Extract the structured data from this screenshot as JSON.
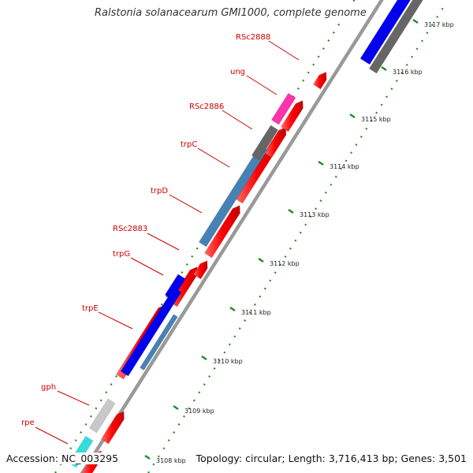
{
  "title": "Ralstonia solanacearum GMI1000, complete genome",
  "footer": {
    "accession": "Accession: NC_003295",
    "summary": "Topology: circular; Length: 3,716,413 bp; Genes: 3,501"
  },
  "colors": {
    "label": "#cc0000",
    "tick": "#228b22",
    "backbone": "#999999",
    "feature_red": "#ff0000",
    "feature_gray": "#666666",
    "feature_light_gray": "#c8c8c8",
    "feature_steelblue": "#4682b4",
    "feature_blue": "#0000ee",
    "feature_magenta": "#ff33aa",
    "feature_cyan": "#33dddd"
  },
  "scale_ticks": [
    {
      "label": "3108 kbp"
    },
    {
      "label": "3109 kbp"
    },
    {
      "label": "3110 kbp"
    },
    {
      "label": "3111 kbp"
    },
    {
      "label": "3112 kbp"
    },
    {
      "label": "3113 kbp"
    },
    {
      "label": "3114 kbp"
    },
    {
      "label": "3115 kbp"
    },
    {
      "label": "3116 kbp"
    },
    {
      "label": "3117 kbp"
    }
  ],
  "genes": [
    {
      "name": "RSc2888"
    },
    {
      "name": "ung"
    },
    {
      "name": "RSc2886"
    },
    {
      "name": "trpC"
    },
    {
      "name": "trpD"
    },
    {
      "name": "RSc2883"
    },
    {
      "name": "trpG"
    },
    {
      "name": "trpE"
    },
    {
      "name": "gph"
    },
    {
      "name": "rpe"
    }
  ]
}
